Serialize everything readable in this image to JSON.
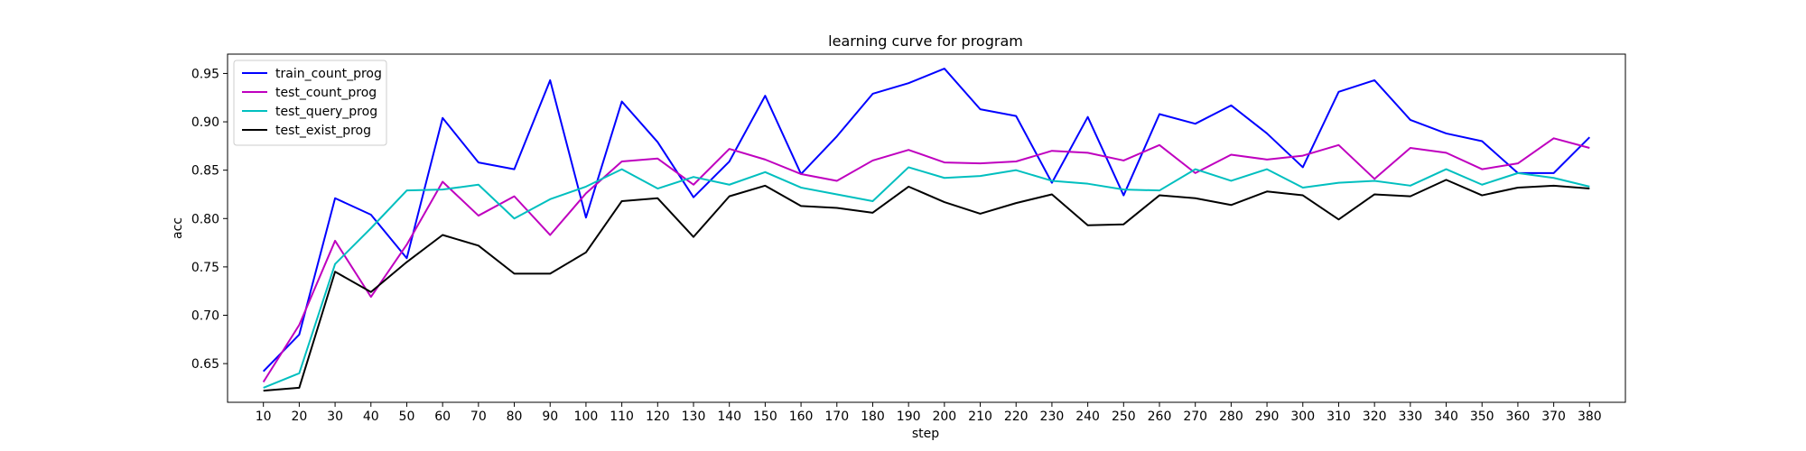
{
  "chart_data": {
    "type": "line",
    "title": "learning curve for program",
    "xlabel": "step",
    "ylabel": "acc",
    "x": [
      10,
      20,
      30,
      40,
      50,
      60,
      70,
      80,
      90,
      100,
      110,
      120,
      130,
      140,
      150,
      160,
      170,
      180,
      190,
      200,
      210,
      220,
      230,
      240,
      250,
      260,
      270,
      280,
      290,
      300,
      310,
      320,
      330,
      340,
      350,
      360,
      370,
      380
    ],
    "xlim": [
      0,
      390
    ],
    "ylim": [
      0.61,
      0.97
    ],
    "yticks": [
      0.65,
      0.7,
      0.75,
      0.8,
      0.85,
      0.9,
      0.95
    ],
    "ytick_labels": [
      "0.65",
      "0.70",
      "0.75",
      "0.80",
      "0.85",
      "0.90",
      "0.95"
    ],
    "grid": false,
    "legend_position": "top-left",
    "series": [
      {
        "name": "train_count_prog",
        "color": "#0000ff",
        "values": [
          0.642,
          0.68,
          0.821,
          0.804,
          0.759,
          0.904,
          0.858,
          0.851,
          0.943,
          0.801,
          0.921,
          0.879,
          0.822,
          0.859,
          0.927,
          0.846,
          0.885,
          0.929,
          0.94,
          0.955,
          0.913,
          0.906,
          0.837,
          0.905,
          0.824,
          0.908,
          0.898,
          0.917,
          0.888,
          0.853,
          0.931,
          0.943,
          0.902,
          0.888,
          0.88,
          0.847,
          0.847,
          0.884
        ]
      },
      {
        "name": "test_count_prog",
        "color": "#bf00bf",
        "values": [
          0.631,
          0.69,
          0.777,
          0.719,
          0.773,
          0.838,
          0.803,
          0.823,
          0.783,
          0.826,
          0.859,
          0.862,
          0.835,
          0.872,
          0.861,
          0.846,
          0.839,
          0.86,
          0.871,
          0.858,
          0.857,
          0.859,
          0.87,
          0.868,
          0.86,
          0.876,
          0.847,
          0.866,
          0.861,
          0.865,
          0.876,
          0.841,
          0.873,
          0.868,
          0.851,
          0.857,
          0.883,
          0.873
        ]
      },
      {
        "name": "test_query_prog",
        "color": "#00bfbf",
        "values": [
          0.625,
          0.64,
          0.753,
          0.79,
          0.829,
          0.83,
          0.835,
          0.8,
          0.82,
          0.833,
          0.851,
          0.831,
          0.843,
          0.835,
          0.848,
          0.832,
          0.825,
          0.818,
          0.853,
          0.842,
          0.844,
          0.85,
          0.839,
          0.836,
          0.83,
          0.829,
          0.851,
          0.839,
          0.851,
          0.832,
          0.837,
          0.839,
          0.834,
          0.851,
          0.835,
          0.847,
          0.842,
          0.833
        ]
      },
      {
        "name": "test_exist_prog",
        "color": "#000000",
        "values": [
          0.622,
          0.625,
          0.745,
          0.724,
          0.755,
          0.783,
          0.772,
          0.743,
          0.743,
          0.765,
          0.818,
          0.821,
          0.781,
          0.823,
          0.834,
          0.813,
          0.811,
          0.806,
          0.833,
          0.817,
          0.805,
          0.816,
          0.825,
          0.793,
          0.794,
          0.824,
          0.821,
          0.814,
          0.828,
          0.824,
          0.799,
          0.825,
          0.823,
          0.84,
          0.824,
          0.832,
          0.834,
          0.831
        ]
      }
    ]
  }
}
